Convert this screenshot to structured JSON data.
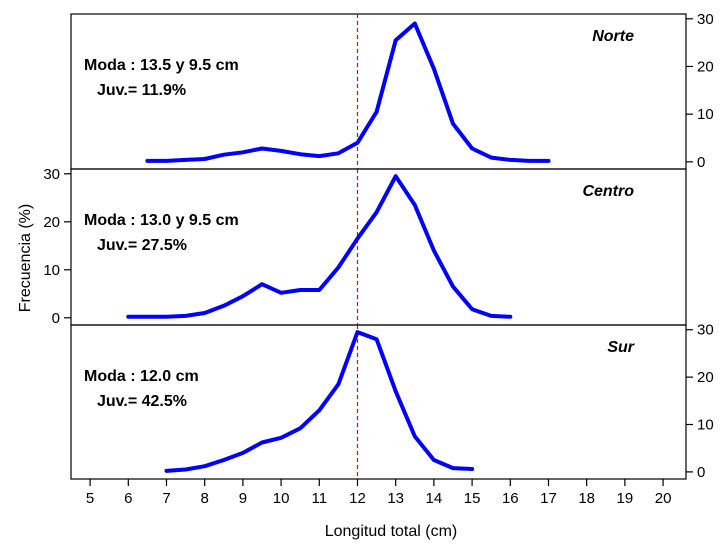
{
  "chart_data": {
    "type": "line",
    "xlabel": "Longitud total (cm)",
    "ylabel": "Frecuencia (%)",
    "xlim": [
      4.5,
      20.6
    ],
    "x_ticks": [
      5,
      6,
      7,
      8,
      9,
      10,
      11,
      12,
      13,
      14,
      15,
      16,
      17,
      18,
      19,
      20
    ],
    "reference_line_x": 12,
    "reference_line_color": "#e00000",
    "line_color": "#0000ff",
    "grid": false,
    "legend": "none",
    "panels": [
      {
        "title": "Norte",
        "annotation": [
          "Moda : 13.5 y 9.5 cm",
          "Juv.= 11.9%"
        ],
        "y_axis_side": "right",
        "ylim": [
          -1.5,
          31
        ],
        "y_ticks": [
          "0",
          "10",
          "20",
          "30"
        ],
        "x": [
          6.5,
          7,
          7.5,
          8,
          8.5,
          9,
          9.5,
          10,
          10.5,
          11,
          11.5,
          12,
          12.5,
          13,
          13.5,
          14,
          14.5,
          15,
          15.5,
          16,
          16.5,
          17
        ],
        "y": [
          0.2,
          0.2,
          0.4,
          0.6,
          1.5,
          2,
          2.8,
          2.3,
          1.6,
          1.2,
          1.8,
          4,
          10.5,
          25.5,
          29,
          19.5,
          8,
          2.8,
          0.9,
          0.4,
          0.2,
          0.2
        ]
      },
      {
        "title": "Centro",
        "annotation": [
          "Moda : 13.0 y 9.5 cm",
          "Juv.= 27.5%"
        ],
        "y_axis_side": "left",
        "ylim": [
          -1.5,
          31
        ],
        "y_ticks": [
          "0",
          "10",
          "20",
          "30"
        ],
        "x": [
          6,
          6.5,
          7,
          7.5,
          8,
          8.5,
          9,
          9.5,
          10,
          10.5,
          11,
          11.5,
          12,
          12.5,
          13,
          13.5,
          14,
          14.5,
          15,
          15.5,
          16
        ],
        "y": [
          0.2,
          0.2,
          0.2,
          0.4,
          1,
          2.5,
          4.5,
          7,
          5.2,
          5.8,
          5.8,
          10.5,
          16.5,
          22,
          29.5,
          23.5,
          14,
          6.5,
          1.8,
          0.4,
          0.2
        ]
      },
      {
        "title": "Sur",
        "annotation": [
          "Moda : 12.0 cm",
          "Juv.= 42.5%"
        ],
        "y_axis_side": "right",
        "ylim": [
          -1.5,
          31
        ],
        "y_ticks": [
          "0",
          "10",
          "20",
          "30"
        ],
        "x": [
          7,
          7.5,
          8,
          8.5,
          9,
          9.5,
          10,
          10.5,
          11,
          11.5,
          12,
          12.5,
          13,
          13.5,
          14,
          14.5,
          15
        ],
        "y": [
          0.2,
          0.5,
          1.2,
          2.5,
          4,
          6.2,
          7.2,
          9.2,
          13,
          18.5,
          29.5,
          28,
          17,
          7.5,
          2.5,
          0.8,
          0.6
        ]
      }
    ]
  }
}
